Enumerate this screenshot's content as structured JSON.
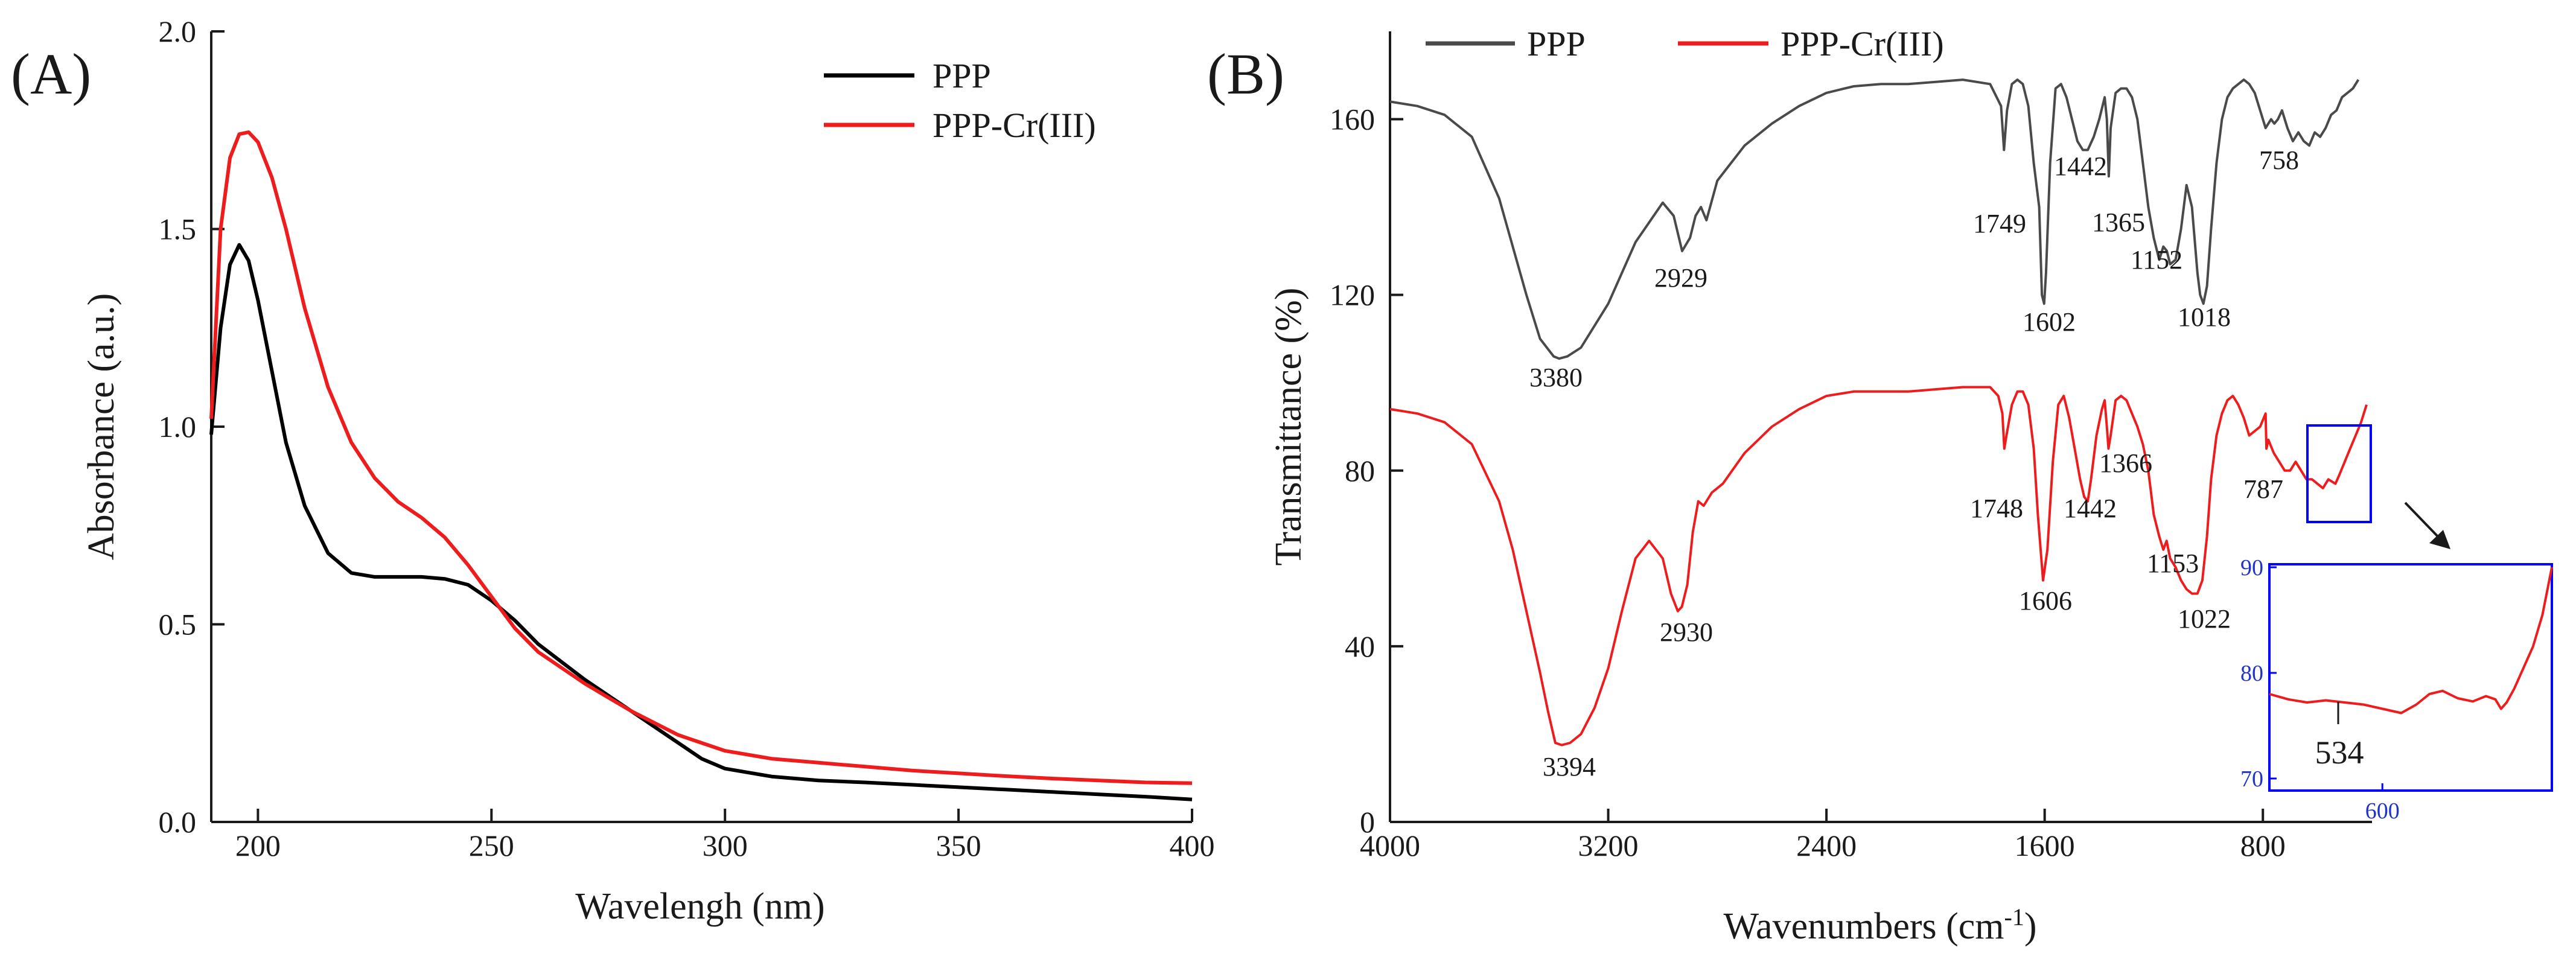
{
  "colors": {
    "ppp_uv": "#000000",
    "ppp_ir": "#4a4a4a",
    "cr": "#ee1c1c",
    "inset_box": "#0000ff",
    "axis": "#1a1a1a"
  },
  "chart_data": [
    {
      "type": "line",
      "panel_label": "(A)",
      "title": "",
      "xlabel": "Wavelengh (nm)",
      "ylabel": "Absorbance (a.u.)",
      "xlim": [
        190,
        400
      ],
      "ylim": [
        0.0,
        2.0
      ],
      "xticks": [
        200,
        250,
        300,
        350,
        400
      ],
      "xtick_labels": [
        "200",
        "250",
        "300",
        "350",
        "400"
      ],
      "yticks": [
        0.0,
        0.5,
        1.0,
        1.5,
        2.0
      ],
      "ytick_labels": [
        "0.0",
        "0.5",
        "1.0",
        "1.5",
        "2.0"
      ],
      "legend_position": "top-right",
      "series": [
        {
          "name": "PPP",
          "color": "#000000",
          "x": [
            190,
            192,
            194,
            196,
            198,
            200,
            203,
            206,
            210,
            215,
            220,
            225,
            230,
            235,
            240,
            245,
            250,
            255,
            260,
            270,
            280,
            290,
            295,
            300,
            310,
            320,
            330,
            340,
            350,
            360,
            370,
            380,
            390,
            400
          ],
          "y": [
            0.98,
            1.25,
            1.41,
            1.46,
            1.42,
            1.32,
            1.14,
            0.96,
            0.8,
            0.68,
            0.63,
            0.62,
            0.62,
            0.62,
            0.615,
            0.6,
            0.56,
            0.51,
            0.45,
            0.36,
            0.28,
            0.2,
            0.16,
            0.135,
            0.115,
            0.105,
            0.1,
            0.094,
            0.088,
            0.082,
            0.076,
            0.07,
            0.064,
            0.057
          ]
        },
        {
          "name": "PPP-Cr(III)",
          "color": "#ee1c1c",
          "x": [
            190,
            192,
            194,
            196,
            198,
            200,
            203,
            206,
            210,
            215,
            220,
            225,
            230,
            235,
            240,
            245,
            250,
            255,
            260,
            270,
            280,
            290,
            300,
            310,
            320,
            330,
            340,
            350,
            360,
            370,
            380,
            390,
            400
          ],
          "y": [
            1.02,
            1.5,
            1.68,
            1.74,
            1.745,
            1.72,
            1.63,
            1.5,
            1.3,
            1.1,
            0.96,
            0.87,
            0.81,
            0.77,
            0.72,
            0.65,
            0.57,
            0.49,
            0.43,
            0.35,
            0.28,
            0.22,
            0.18,
            0.16,
            0.15,
            0.14,
            0.13,
            0.123,
            0.116,
            0.11,
            0.105,
            0.1,
            0.098
          ]
        }
      ]
    },
    {
      "type": "line",
      "panel_label": "(B)",
      "title": "",
      "xlabel": "Wavenumbers (cm",
      "xlabel_sup": "-1",
      "xlabel_close": ")",
      "ylabel": "Transmittance (%)",
      "xlim": [
        4000,
        400
      ],
      "ylim": [
        0,
        180
      ],
      "xticks": [
        4000,
        3200,
        2400,
        1600,
        800
      ],
      "xtick_labels": [
        "4000",
        "3200",
        "2400",
        "1600",
        "800"
      ],
      "yticks": [
        0,
        40,
        80,
        120,
        160
      ],
      "ytick_labels": [
        "0",
        "40",
        "80",
        "120",
        "160"
      ],
      "legend_position": "top",
      "series": [
        {
          "name": "PPP",
          "color": "#4a4a4a",
          "x": [
            4000,
            3900,
            3800,
            3700,
            3600,
            3500,
            3450,
            3400,
            3380,
            3350,
            3300,
            3200,
            3100,
            3000,
            2960,
            2929,
            2900,
            2880,
            2860,
            2840,
            2800,
            2700,
            2600,
            2500,
            2400,
            2300,
            2200,
            2100,
            2000,
            1900,
            1800,
            1760,
            1749,
            1738,
            1720,
            1700,
            1680,
            1660,
            1640,
            1620,
            1610,
            1602,
            1595,
            1580,
            1560,
            1540,
            1520,
            1500,
            1480,
            1460,
            1442,
            1420,
            1400,
            1380,
            1372,
            1365,
            1358,
            1340,
            1320,
            1300,
            1280,
            1260,
            1240,
            1220,
            1200,
            1180,
            1165,
            1152,
            1140,
            1120,
            1100,
            1080,
            1060,
            1040,
            1030,
            1018,
            1005,
            990,
            970,
            950,
            930,
            910,
            890,
            870,
            850,
            830,
            810,
            790,
            770,
            758,
            745,
            730,
            710,
            690,
            670,
            650,
            630,
            610,
            590,
            570,
            550,
            530,
            510,
            490,
            470,
            450
          ],
          "y": [
            164,
            163,
            161,
            156,
            142,
            120,
            110,
            106,
            105.5,
            106,
            108,
            118,
            132,
            141,
            138,
            130,
            133,
            138,
            140,
            137,
            146,
            154,
            159,
            163,
            166,
            167.5,
            168,
            168,
            168.5,
            169,
            168,
            163,
            153,
            162,
            168,
            169,
            168,
            163,
            150,
            140,
            120,
            118,
            125,
            150,
            167,
            168,
            165,
            160,
            155,
            153,
            153,
            156,
            160,
            165,
            160,
            147,
            158,
            166,
            167,
            167,
            165,
            160,
            150,
            140,
            133,
            128,
            131,
            130,
            127,
            128,
            135,
            145,
            140,
            125,
            120,
            118,
            122,
            135,
            150,
            160,
            165,
            167,
            168,
            169,
            168,
            166,
            162,
            158,
            160,
            159,
            160,
            162,
            158,
            155,
            157,
            155,
            154,
            157,
            156,
            158,
            161,
            162,
            165,
            166,
            167,
            169
          ]
        },
        {
          "name": "PPP-Cr(III)",
          "color": "#ee1c1c",
          "x": [
            4000,
            3900,
            3800,
            3700,
            3600,
            3550,
            3500,
            3450,
            3420,
            3394,
            3370,
            3340,
            3300,
            3250,
            3200,
            3150,
            3100,
            3050,
            3000,
            2970,
            2945,
            2930,
            2910,
            2890,
            2870,
            2850,
            2820,
            2780,
            2700,
            2600,
            2500,
            2400,
            2300,
            2200,
            2100,
            2000,
            1900,
            1800,
            1770,
            1755,
            1748,
            1740,
            1720,
            1700,
            1680,
            1660,
            1640,
            1625,
            1606,
            1590,
            1570,
            1550,
            1530,
            1510,
            1490,
            1470,
            1455,
            1442,
            1430,
            1410,
            1390,
            1380,
            1372,
            1366,
            1358,
            1340,
            1320,
            1300,
            1280,
            1260,
            1240,
            1220,
            1200,
            1180,
            1165,
            1153,
            1140,
            1120,
            1100,
            1080,
            1060,
            1040,
            1022,
            1005,
            990,
            970,
            950,
            930,
            910,
            890,
            870,
            850,
            830,
            810,
            790,
            787,
            780,
            760,
            740,
            720,
            700,
            680,
            660,
            640,
            620,
            600,
            580,
            560,
            534,
            520,
            500,
            480,
            460,
            440,
            420
          ],
          "y": [
            94,
            93,
            91,
            86,
            73,
            62,
            48,
            34,
            25,
            18,
            17.5,
            18,
            20,
            26,
            35,
            48,
            60,
            64,
            60,
            52,
            48,
            49,
            54,
            66,
            73,
            72,
            75,
            77,
            84,
            90,
            94,
            97,
            98,
            98,
            98,
            98.5,
            99,
            99,
            97,
            93,
            85,
            88,
            95,
            98,
            98,
            95,
            85,
            70,
            55,
            62,
            82,
            95,
            97,
            92,
            85,
            78,
            74,
            73,
            78,
            88,
            94,
            96,
            90,
            85,
            88,
            96,
            97,
            96,
            93,
            90,
            86,
            80,
            70,
            65,
            62,
            64,
            60,
            58,
            55,
            53,
            52,
            52,
            55,
            65,
            78,
            88,
            93,
            96,
            97,
            95,
            92,
            88,
            89,
            90,
            93,
            85,
            87,
            84,
            82,
            80,
            80,
            82,
            80,
            78,
            78,
            77,
            76,
            78,
            77,
            79,
            82,
            85,
            88,
            91,
            95
          ]
        }
      ],
      "peak_labels_ppp": [
        "3380",
        "2929",
        "1749",
        "1602",
        "1442",
        "1365",
        "1152",
        "1018",
        "758"
      ],
      "peak_labels_cr": [
        "3394",
        "2930",
        "1748",
        "1606",
        "1442",
        "1366",
        "1153",
        "1022",
        "787"
      ],
      "inset": {
        "xlim": [
          660,
          510
        ],
        "ylim": [
          70,
          90
        ],
        "xtick_labels": [
          "600"
        ],
        "ytick_labels": [
          "70",
          "80",
          "90"
        ],
        "annotation": "534",
        "series": {
          "name": "PPP-Cr(III)",
          "x": [
            660,
            650,
            640,
            630,
            620,
            610,
            600,
            590,
            582,
            575,
            568,
            560,
            552,
            545,
            540,
            537,
            534,
            530,
            525,
            520,
            515,
            510
          ],
          "y": [
            78,
            77.5,
            77.2,
            77.4,
            77.2,
            77,
            76.6,
            76.2,
            77,
            78,
            78.3,
            77.6,
            77.3,
            77.8,
            77.5,
            76.6,
            77.2,
            78.5,
            80.5,
            82.5,
            85.5,
            90
          ]
        }
      }
    }
  ]
}
